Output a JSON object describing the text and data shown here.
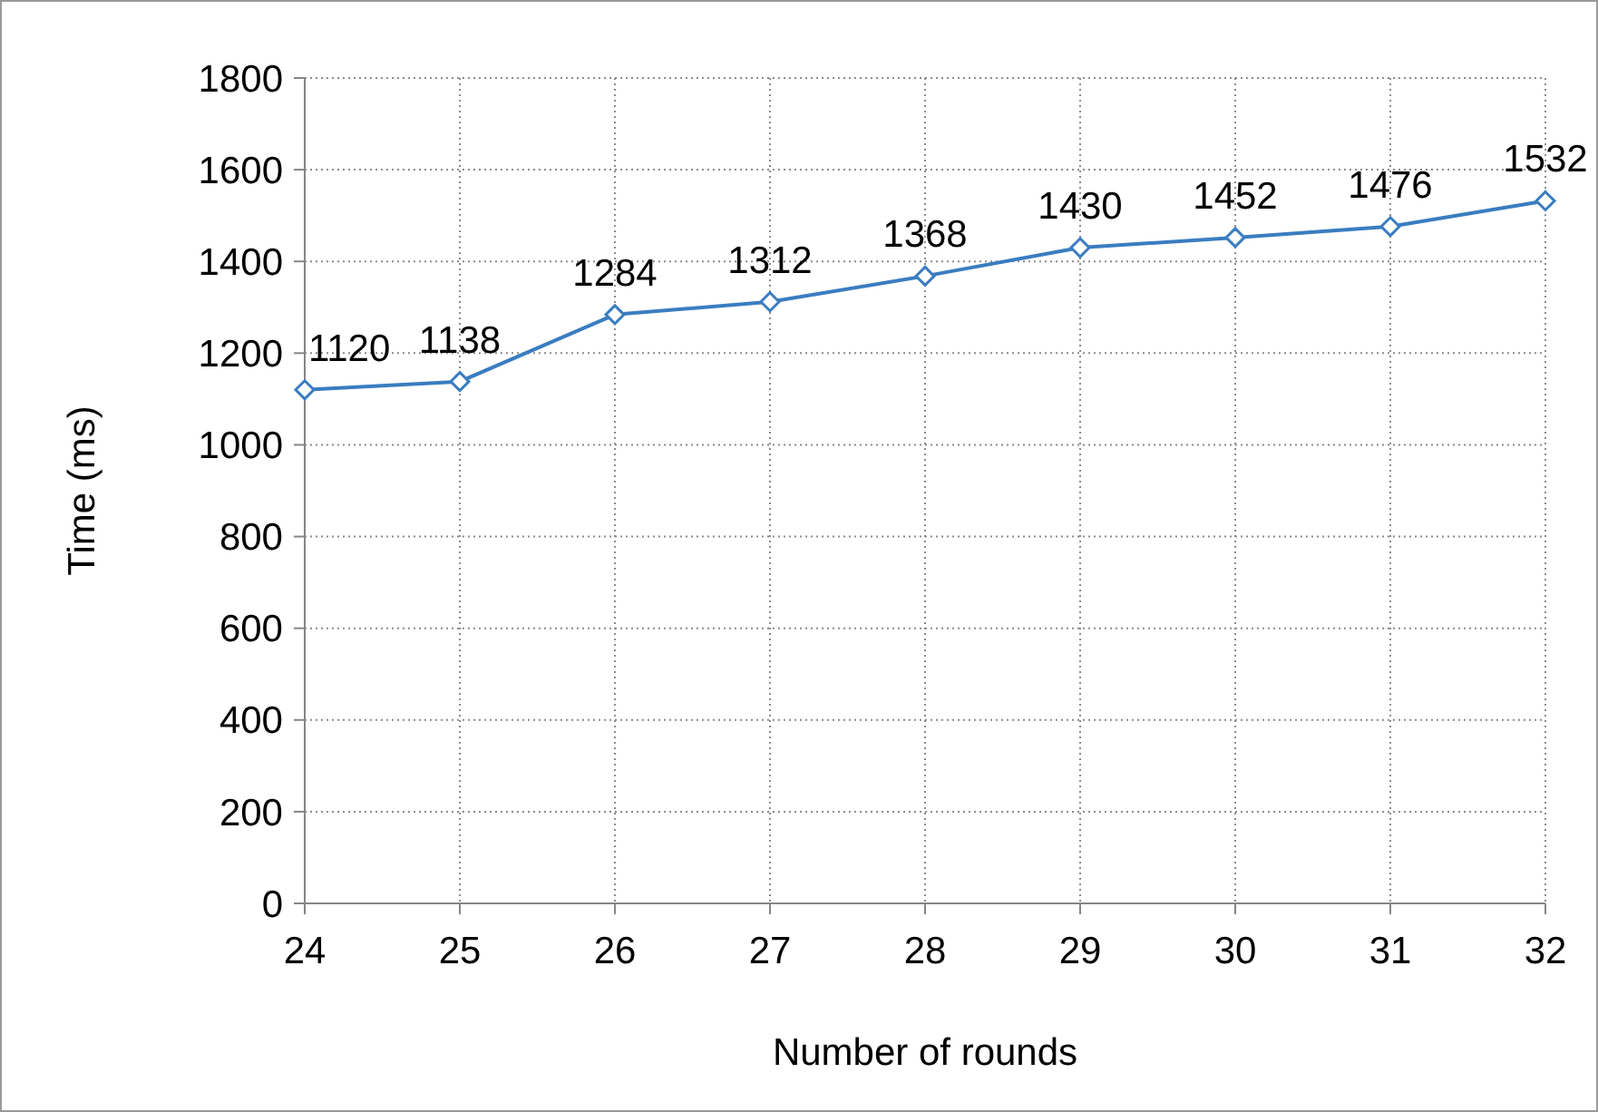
{
  "chart_data": {
    "type": "line",
    "xlabel": "Number of rounds",
    "ylabel": "Time (ms)",
    "x": [
      24,
      25,
      26,
      27,
      28,
      29,
      30,
      31,
      32
    ],
    "series": [
      {
        "color": "#3a7dc0",
        "values": [
          1120,
          1138,
          1284,
          1312,
          1368,
          1430,
          1452,
          1476,
          1532
        ]
      }
    ],
    "xlim": [
      24,
      32
    ],
    "xticks": [
      24,
      25,
      26,
      27,
      28,
      29,
      30,
      31,
      32
    ],
    "ylim": [
      0,
      1800
    ],
    "yticks": [
      0,
      200,
      400,
      600,
      800,
      1000,
      1200,
      1400,
      1600,
      1800
    ],
    "grid": true,
    "marker": "diamond",
    "data_labels": true
  }
}
